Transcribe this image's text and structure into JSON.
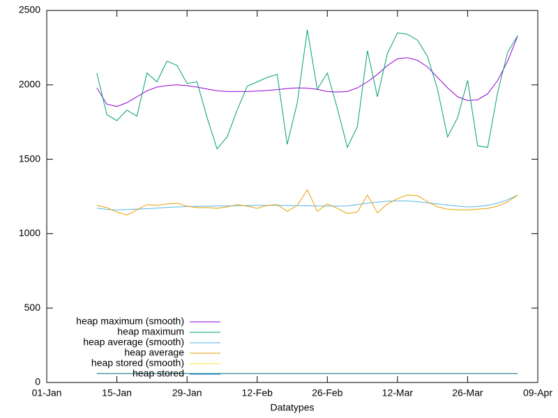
{
  "chart_data": {
    "type": "line",
    "xlabel": "Datatypes",
    "x": [
      "11-Jan",
      "13-Jan",
      "15-Jan",
      "17-Jan",
      "19-Jan",
      "21-Jan",
      "23-Jan",
      "25-Jan",
      "27-Jan",
      "29-Jan",
      "31-Jan",
      "02-Feb",
      "04-Feb",
      "06-Feb",
      "08-Feb",
      "10-Feb",
      "12-Feb",
      "14-Feb",
      "16-Feb",
      "18-Feb",
      "20-Feb",
      "22-Feb",
      "24-Feb",
      "26-Feb",
      "28-Feb",
      "02-Mar",
      "04-Mar",
      "06-Mar",
      "08-Mar",
      "10-Mar",
      "12-Mar",
      "14-Mar",
      "16-Mar",
      "18-Mar",
      "20-Mar",
      "22-Mar",
      "24-Mar",
      "26-Mar",
      "28-Mar",
      "30-Mar",
      "01-Apr",
      "03-Apr",
      "05-Apr"
    ],
    "series": [
      {
        "name": "heap maximum (smooth)",
        "color": "#9400d3",
        "values": [
          1980,
          1870,
          1855,
          1880,
          1920,
          1960,
          1985,
          1995,
          2000,
          1995,
          1985,
          1972,
          1960,
          1955,
          1955,
          1955,
          1958,
          1962,
          1968,
          1975,
          1980,
          1978,
          1970,
          1955,
          1952,
          1955,
          1980,
          2020,
          2070,
          2130,
          2175,
          2183,
          2165,
          2120,
          2050,
          1980,
          1920,
          1895,
          1900,
          1940,
          2030,
          2160,
          2330
        ]
      },
      {
        "name": "heap maximum",
        "color": "#009e73",
        "values": [
          2080,
          1800,
          1760,
          1830,
          1790,
          2080,
          2020,
          2160,
          2130,
          2010,
          2020,
          1780,
          1570,
          1650,
          1830,
          1990,
          2020,
          2050,
          2070,
          1600,
          1880,
          2370,
          1970,
          2080,
          1840,
          1580,
          1720,
          2230,
          1920,
          2210,
          2350,
          2340,
          2300,
          2190,
          1970,
          1650,
          1780,
          2030,
          1590,
          1580,
          1950,
          2220,
          2330
        ]
      },
      {
        "name": "heap average (smooth)",
        "color": "#56b4e9",
        "values": [
          1172,
          1163,
          1160,
          1162,
          1165,
          1168,
          1172,
          1176,
          1180,
          1182,
          1184,
          1185,
          1186,
          1187,
          1188,
          1189,
          1190,
          1190,
          1190,
          1189,
          1188,
          1187,
          1186,
          1185,
          1185,
          1186,
          1195,
          1205,
          1212,
          1218,
          1220,
          1220,
          1215,
          1208,
          1200,
          1192,
          1185,
          1180,
          1182,
          1190,
          1205,
          1228,
          1260
        ]
      },
      {
        "name": "heap average",
        "color": "#e69f00",
        "values": [
          1190,
          1175,
          1145,
          1125,
          1160,
          1195,
          1190,
          1200,
          1205,
          1185,
          1175,
          1175,
          1170,
          1180,
          1195,
          1185,
          1170,
          1190,
          1195,
          1150,
          1190,
          1295,
          1150,
          1200,
          1170,
          1135,
          1145,
          1260,
          1140,
          1200,
          1235,
          1260,
          1255,
          1215,
          1180,
          1165,
          1160,
          1160,
          1165,
          1170,
          1185,
          1215,
          1260
        ]
      },
      {
        "name": "heap stored (smooth)",
        "color": "#f0e442",
        "values": [
          60,
          60,
          60,
          60,
          60,
          60,
          60,
          60,
          60,
          60,
          60,
          60,
          60,
          60,
          60,
          60,
          60,
          60,
          60,
          60,
          60,
          60,
          60,
          60,
          60,
          60,
          60,
          60,
          60,
          60,
          60,
          60,
          60,
          60,
          60,
          60,
          60,
          60,
          60,
          60,
          60,
          60,
          60
        ]
      },
      {
        "name": "heap stored",
        "color": "#0072b2",
        "values": [
          60,
          60,
          60,
          60,
          60,
          60,
          60,
          60,
          60,
          60,
          60,
          60,
          60,
          60,
          60,
          60,
          60,
          60,
          60,
          60,
          60,
          60,
          60,
          60,
          60,
          60,
          60,
          60,
          60,
          60,
          60,
          60,
          60,
          60,
          60,
          60,
          60,
          60,
          60,
          60,
          60,
          60,
          60
        ]
      }
    ],
    "xlim": [
      "01-Jan",
      "09-Apr"
    ],
    "xticks": [
      "01-Jan",
      "15-Jan",
      "29-Jan",
      "12-Feb",
      "26-Feb",
      "12-Mar",
      "26-Mar",
      "09-Apr"
    ],
    "ylim": [
      0,
      2500
    ],
    "yticks": [
      0,
      500,
      1000,
      1500,
      2000,
      2500
    ],
    "legend": "lower-left"
  }
}
